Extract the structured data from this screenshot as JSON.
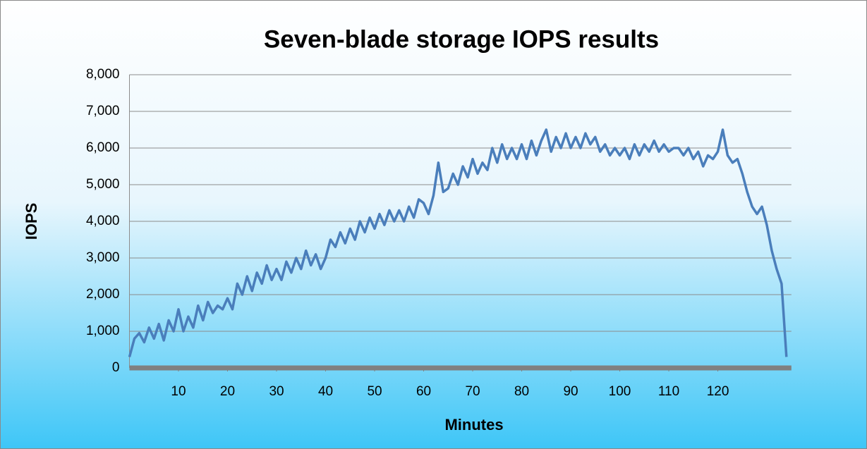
{
  "chart_data": {
    "type": "line",
    "title": "Seven-blade storage IOPS results",
    "x_label": "Minutes",
    "y_label": "IOPS",
    "xlim": [
      0,
      135
    ],
    "xticks": [
      10,
      20,
      30,
      40,
      50,
      60,
      70,
      80,
      90,
      100,
      110,
      120
    ],
    "ylim": [
      0,
      8000
    ],
    "yticks": [
      0,
      {
        "value": 1000,
        "label": "1,000"
      },
      {
        "value": 2000,
        "label": "2,000"
      },
      {
        "value": 3000,
        "label": "3,000"
      },
      {
        "value": 4000,
        "label": "4,000"
      },
      {
        "value": 5000,
        "label": "5,000"
      },
      {
        "value": 6000,
        "label": "6,000"
      },
      {
        "value": 7000,
        "label": "7,000"
      },
      {
        "value": 8000,
        "label": "8,000"
      }
    ],
    "grid": true,
    "series": [
      {
        "color": "#4a7ebb",
        "x": [
          0,
          1,
          2,
          3,
          4,
          5,
          6,
          7,
          8,
          9,
          10,
          11,
          12,
          13,
          14,
          15,
          16,
          17,
          18,
          19,
          20,
          21,
          22,
          23,
          24,
          25,
          26,
          27,
          28,
          29,
          30,
          31,
          32,
          33,
          34,
          35,
          36,
          37,
          38,
          39,
          40,
          41,
          42,
          43,
          44,
          45,
          46,
          47,
          48,
          49,
          50,
          51,
          52,
          53,
          54,
          55,
          56,
          57,
          58,
          59,
          60,
          61,
          62,
          63,
          64,
          65,
          66,
          67,
          68,
          69,
          70,
          71,
          72,
          73,
          74,
          75,
          76,
          77,
          78,
          79,
          80,
          81,
          82,
          83,
          84,
          85,
          86,
          87,
          88,
          89,
          90,
          91,
          92,
          93,
          94,
          95,
          96,
          97,
          98,
          99,
          100,
          101,
          102,
          103,
          104,
          105,
          106,
          107,
          108,
          109,
          110,
          111,
          112,
          113,
          114,
          115,
          116,
          117,
          118,
          119,
          120,
          121,
          122,
          123,
          124,
          125,
          126,
          127,
          128,
          129,
          130,
          131,
          132,
          133,
          134
        ],
        "values": [
          300,
          800,
          950,
          700,
          1100,
          800,
          1200,
          750,
          1300,
          1000,
          1600,
          1000,
          1400,
          1100,
          1700,
          1300,
          1800,
          1500,
          1700,
          1600,
          1900,
          1600,
          2300,
          2000,
          2500,
          2100,
          2600,
          2300,
          2800,
          2400,
          2700,
          2400,
          2900,
          2600,
          3000,
          2700,
          3200,
          2800,
          3100,
          2700,
          3000,
          3500,
          3300,
          3700,
          3400,
          3800,
          3500,
          4000,
          3700,
          4100,
          3800,
          4200,
          3900,
          4300,
          4000,
          4300,
          4000,
          4400,
          4100,
          4600,
          4500,
          4200,
          4700,
          5600,
          4800,
          4900,
          5300,
          5000,
          5500,
          5200,
          5700,
          5300,
          5600,
          5400,
          6000,
          5600,
          6100,
          5700,
          6000,
          5700,
          6100,
          5700,
          6200,
          5800,
          6200,
          6500,
          5900,
          6300,
          6000,
          6400,
          6000,
          6300,
          6000,
          6400,
          6100,
          6300,
          5900,
          6100,
          5800,
          6000,
          5800,
          6000,
          5700,
          6100,
          5800,
          6100,
          5900,
          6200,
          5900,
          6100,
          5900,
          6000,
          6000,
          5800,
          6000,
          5700,
          5900,
          5500,
          5800,
          5700,
          5900,
          6500,
          5800,
          5600,
          5700,
          5300,
          4800,
          4400,
          4200,
          4400,
          3900,
          3200,
          2700,
          2300,
          300
        ]
      }
    ]
  }
}
